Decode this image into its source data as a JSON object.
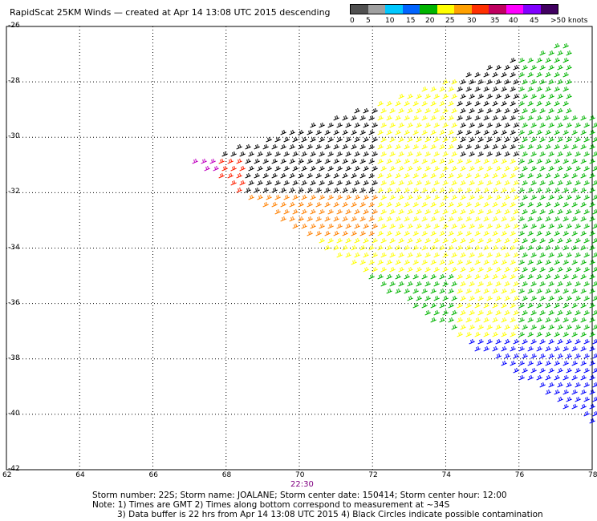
{
  "title": "RapidScat 25KM Winds — created at Apr 14 13:08 UTC 2015 descending",
  "legend": {
    "labels": [
      "0",
      "5",
      "10",
      "15",
      "20",
      "25",
      "30",
      "35",
      "40",
      "45",
      ">50 knots"
    ],
    "colors": [
      "#505050",
      "#a0a0a0",
      "#00c8ff",
      "#0064ff",
      "#00b400",
      "#ffff00",
      "#ffa000",
      "#ff3000",
      "#c00060",
      "#ff00ff",
      "#8000ff",
      "#400060"
    ]
  },
  "axes": {
    "x_ticks": [
      "62",
      "64",
      "66",
      "68",
      "70",
      "72",
      "74",
      "76",
      "78"
    ],
    "y_ticks": [
      "-26",
      "-28",
      "-30",
      "-32",
      "-34",
      "-36",
      "-38",
      "-40",
      "-42"
    ],
    "x_range": [
      62,
      78
    ],
    "y_range": [
      -42,
      -26
    ]
  },
  "time_label": "22:30",
  "footer": {
    "line1": "Storm number: 22S;   Storm name: JOALANE;   Storm center date: 150414;   Storm center hour: 12:00",
    "line2": "Note:  1) Times are GMT   2) Times along bottom correspond to measurement at ~34S",
    "line3": "3) Data buffer is 22 hrs from Apr 14 13:08 UTC 2015   4) Black Circles indicate possible contamination"
  },
  "wind_colors": {
    "calm": "#000000",
    "moderate": "#ffff00",
    "orange": "#ff8000",
    "red": "#ff2000",
    "magenta": "#c000c0",
    "green": "#00b400",
    "blue": "#0000ff"
  }
}
